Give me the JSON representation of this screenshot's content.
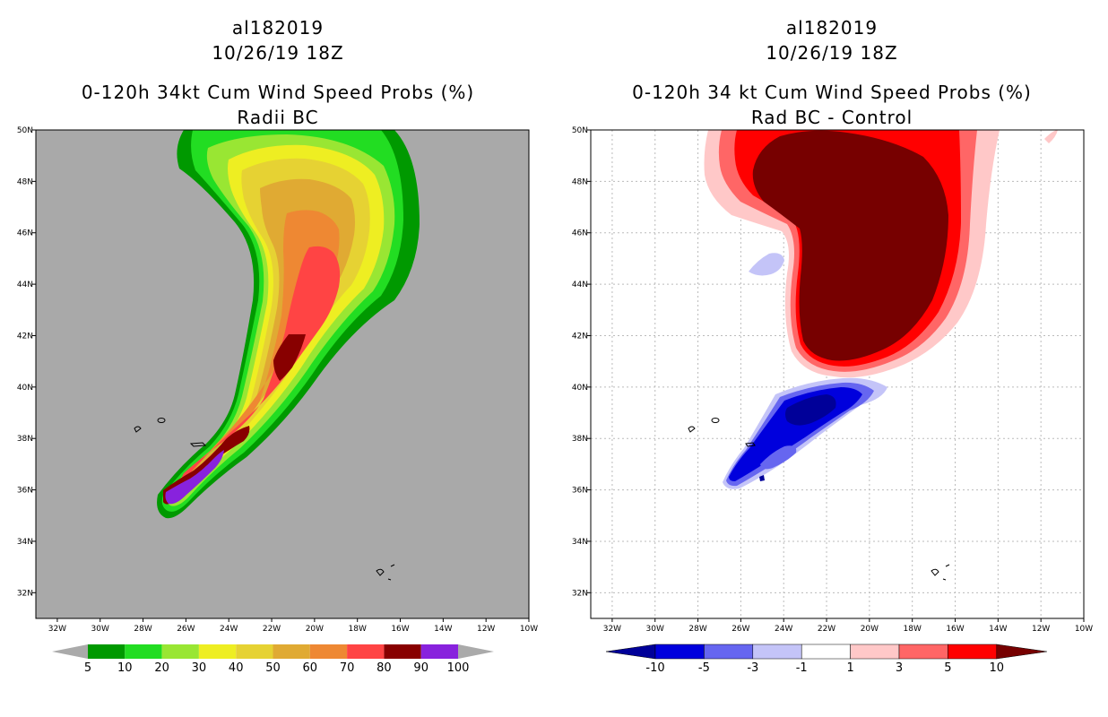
{
  "chart_data": [
    {
      "type": "filled-contour-map",
      "storm_id": "al182019",
      "datetime": "10/26/19 18Z",
      "title": "0-120h 34kt Cum Wind Speed Probs (%)",
      "subtitle": "Radii BC",
      "lon_ticks": [
        "32W",
        "30W",
        "28W",
        "26W",
        "24W",
        "22W",
        "20W",
        "18W",
        "16W",
        "14W",
        "12W",
        "10W"
      ],
      "lat_ticks": [
        "32N",
        "34N",
        "36N",
        "38N",
        "40N",
        "42N",
        "44N",
        "46N",
        "48N",
        "50N"
      ],
      "lon_range": [
        -33,
        -10
      ],
      "lat_range": [
        31,
        50
      ],
      "colorbar_levels": [
        "5",
        "10",
        "20",
        "30",
        "40",
        "50",
        "60",
        "70",
        "80",
        "90",
        "100"
      ],
      "colorbar_colors": [
        "#009900",
        "#22dd22",
        "#99e633",
        "#eeee22",
        "#e6d233",
        "#e0aa33",
        "#ee8833",
        "#ff4444",
        "#880000",
        "#8822dd"
      ],
      "colorbar_end_color": "#aaaaaa",
      "background_color": "#a9a9a9"
    },
    {
      "type": "filled-contour-map",
      "storm_id": "al182019",
      "datetime": "10/26/19 18Z",
      "title": "0-120h 34 kt Cum Wind Speed Probs (%)",
      "subtitle": "Rad BC - Control",
      "lon_ticks": [
        "32W",
        "30W",
        "28W",
        "26W",
        "24W",
        "22W",
        "20W",
        "18W",
        "16W",
        "14W",
        "12W",
        "10W"
      ],
      "lat_ticks": [
        "32N",
        "34N",
        "36N",
        "38N",
        "40N",
        "42N",
        "44N",
        "46N",
        "48N",
        "50N"
      ],
      "lon_range": [
        -33,
        -10
      ],
      "lat_range": [
        31,
        50
      ],
      "colorbar_levels": [
        "-10",
        "-5",
        "-3",
        "-1",
        "1",
        "3",
        "5",
        "10"
      ],
      "colorbar_colors": [
        "#0000dd",
        "#6666f0",
        "#c4c4f8",
        "#ffffff",
        "#ffc8c8",
        "#ff6666",
        "#ff0000"
      ],
      "colorbar_end_left": "#000099",
      "colorbar_end_right": "#770000",
      "background_color": "#ffffff"
    }
  ]
}
